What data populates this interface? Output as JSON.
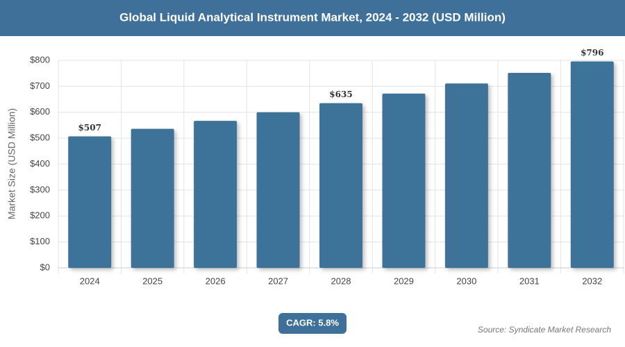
{
  "chart_data": {
    "type": "bar",
    "title": "Global Liquid Analytical Instrument Market, 2024 - 2032 (USD Million)",
    "y_label": "Market Size (USD Million)",
    "categories": [
      "2024",
      "2025",
      "2026",
      "2027",
      "2028",
      "2029",
      "2030",
      "2031",
      "2032"
    ],
    "values": [
      507,
      536,
      567,
      600,
      635,
      672,
      711,
      752,
      796
    ],
    "value_labels": [
      "$507",
      null,
      null,
      null,
      "$635",
      null,
      null,
      null,
      "$796"
    ],
    "color": "#3d7299",
    "ylim": [
      0,
      800
    ],
    "yticks": [
      {
        "value": 0,
        "label": "$0"
      },
      {
        "value": 100,
        "label": "$100"
      },
      {
        "value": 200,
        "label": "$200"
      },
      {
        "value": 300,
        "label": "$300"
      },
      {
        "value": 400,
        "label": "$400"
      },
      {
        "value": 500,
        "label": "$500"
      },
      {
        "value": 600,
        "label": "$600"
      },
      {
        "value": 700,
        "label": "$700"
      },
      {
        "value": 800,
        "label": "$800"
      }
    ],
    "grid": true,
    "cagr": "CAGR: 5.8%",
    "source": "Source: Syndicate Market Research"
  }
}
